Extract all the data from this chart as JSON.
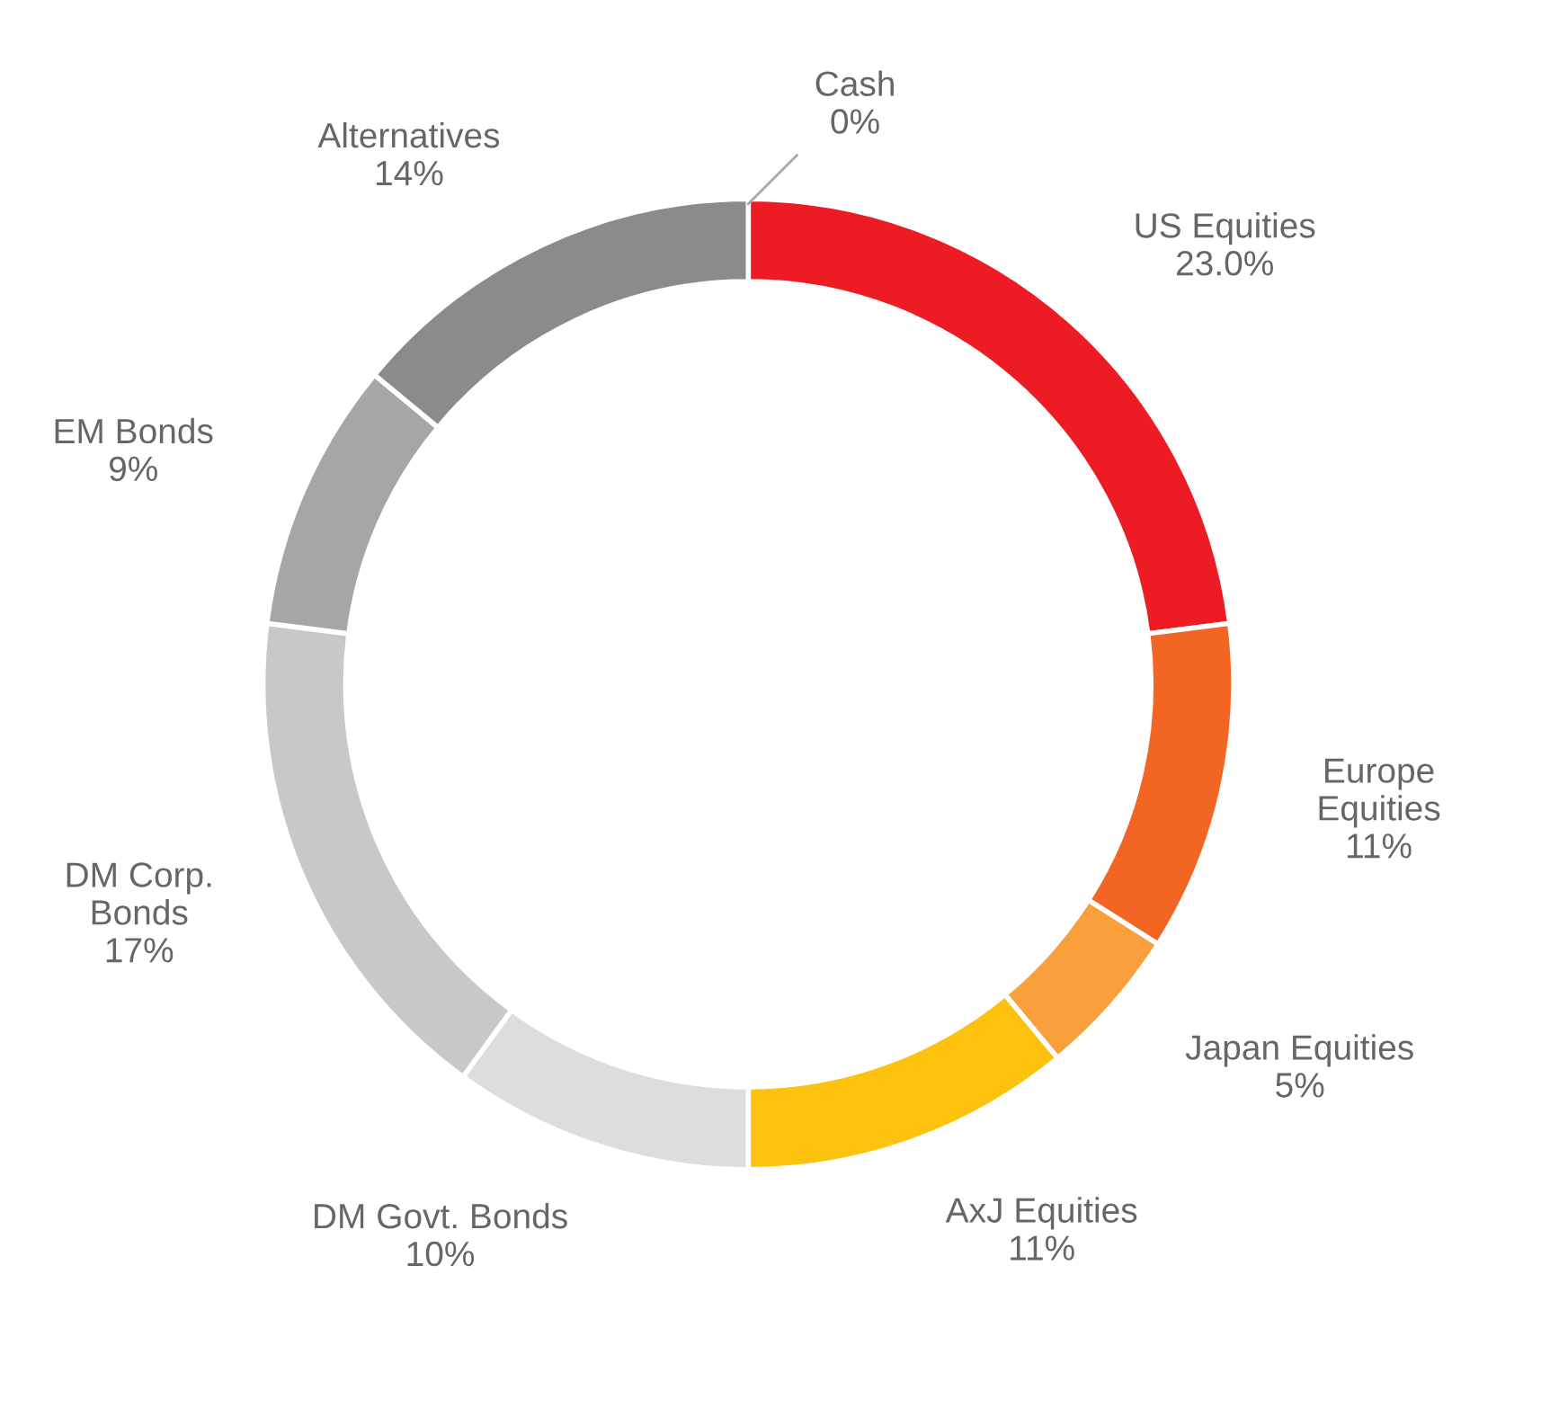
{
  "chart_data": {
    "type": "donut",
    "categories": [
      "Cash",
      "US Equities",
      "Europe\nEquities",
      "Japan Equities",
      "AxJ Equities",
      "DM Govt. Bonds",
      "DM Corp.\nBonds",
      "EM Bonds",
      "Alternatives"
    ],
    "values": [
      0,
      23,
      11,
      5,
      11,
      10,
      17,
      9,
      14
    ],
    "value_labels": [
      "0%",
      "23.0%",
      "11%",
      "5%",
      "11%",
      "10%",
      "17%",
      "9%",
      "14%"
    ],
    "colors": [
      "#a8a8a9",
      "#ed1c24",
      "#f26522",
      "#f9a03c",
      "#fdc20e",
      "#dddddd",
      "#c8c8c8",
      "#a6a6a7",
      "#8b8b8c"
    ],
    "legend": false
  }
}
